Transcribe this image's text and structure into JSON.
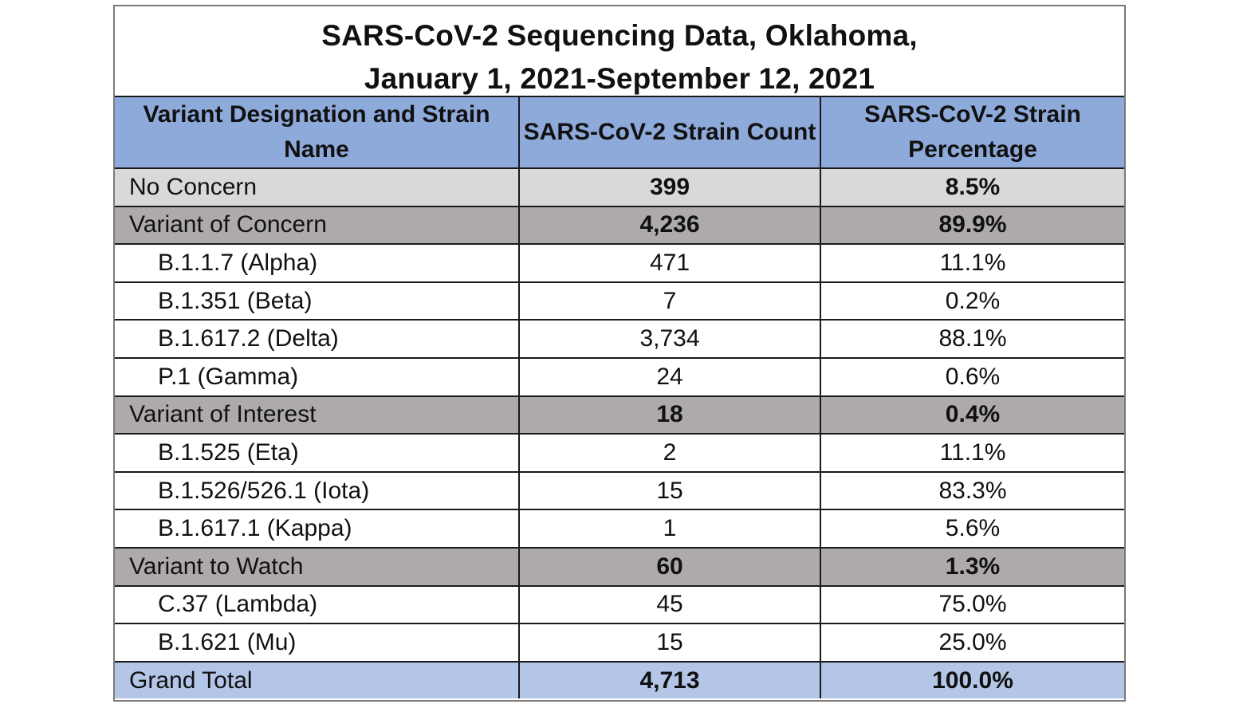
{
  "title": {
    "line1": "SARS-CoV-2 Sequencing Data, Oklahoma,",
    "line2": "January 1, 2021-September 12, 2021"
  },
  "columns": [
    "Variant Designation and Strain Name",
    "SARS-CoV-2 Strain Count",
    "SARS-CoV-2 Strain Percentage"
  ],
  "rows": [
    {
      "type": "none",
      "name": "No Concern",
      "count": "399",
      "pct": "8.5%"
    },
    {
      "type": "group",
      "name": "Variant of Concern",
      "count": "4,236",
      "pct": "89.9%"
    },
    {
      "type": "sub",
      "name": "B.1.1.7 (Alpha)",
      "count": "471",
      "pct": "11.1%"
    },
    {
      "type": "sub",
      "name": "B.1.351 (Beta)",
      "count": "7",
      "pct": "0.2%"
    },
    {
      "type": "sub",
      "name": "B.1.617.2 (Delta)",
      "count": "3,734",
      "pct": "88.1%"
    },
    {
      "type": "sub",
      "name": "P.1 (Gamma)",
      "count": "24",
      "pct": "0.6%"
    },
    {
      "type": "group",
      "name": "Variant of Interest",
      "count": "18",
      "pct": "0.4%"
    },
    {
      "type": "sub",
      "name": "B.1.525 (Eta)",
      "count": "2",
      "pct": "11.1%"
    },
    {
      "type": "sub",
      "name": "B.1.526/526.1 (Iota)",
      "count": "15",
      "pct": "83.3%"
    },
    {
      "type": "sub",
      "name": "B.1.617.1 (Kappa)",
      "count": "1",
      "pct": "5.6%"
    },
    {
      "type": "group",
      "name": "Variant to Watch",
      "count": "60",
      "pct": "1.3%"
    },
    {
      "type": "sub",
      "name": "C.37 (Lambda)",
      "count": "45",
      "pct": "75.0%"
    },
    {
      "type": "sub",
      "name": "B.1.621 (Mu)",
      "count": "15",
      "pct": "25.0%"
    },
    {
      "type": "total",
      "name": "Grand Total",
      "count": "4,713",
      "pct": "100.0%"
    }
  ],
  "colors": {
    "header": "#8eaadb",
    "no_concern": "#d9d9d9",
    "group": "#aeaaaa",
    "total": "#b4c6e7"
  }
}
